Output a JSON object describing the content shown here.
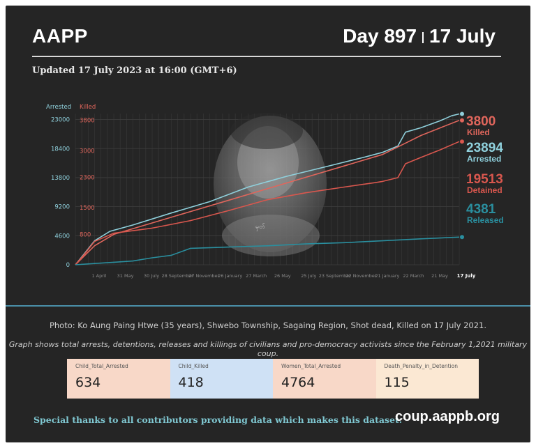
{
  "header": {
    "brand": "AAPP",
    "day_label": "Day 897",
    "date_label": "17 July",
    "updated": "Updated 17 July 2023 at 16:00 (GMT+6)"
  },
  "colors": {
    "background": "#252525",
    "arrested": "#8fd0dc",
    "killed": "#e0665c",
    "detained": "#d9574e",
    "released": "#2a8f9f",
    "divider": "#4a8fa8",
    "thanks": "#7fc7d1"
  },
  "chart_data": {
    "type": "line",
    "x_ticks": [
      "1 April",
      "31 May",
      "30 July",
      "28 September",
      "27 November",
      "26 January",
      "27 March",
      "26 May",
      "25 July",
      "23 September",
      "22 November",
      "21 January",
      "22 March",
      "21 May",
      "17 July"
    ],
    "x_range": [
      "1 February 2021",
      "17 July 2023"
    ],
    "left_axis": {
      "label": "Arrested",
      "ticks": [
        0,
        4600,
        9200,
        13800,
        18400,
        23000
      ],
      "range": [
        0,
        24500
      ]
    },
    "right_axis": {
      "label": "Killed",
      "ticks": [
        800,
        1500,
        2300,
        3000,
        3800
      ],
      "range": [
        0,
        4070
      ]
    },
    "grid": true,
    "series": [
      {
        "name": "Arrested",
        "axis": "left",
        "final_value": 23894,
        "x": [
          0,
          0.02,
          0.05,
          0.09,
          0.15,
          0.25,
          0.35,
          0.45,
          0.55,
          0.65,
          0.75,
          0.8,
          0.84,
          0.86,
          0.9,
          0.95,
          0.98,
          1.0
        ],
        "values": [
          0,
          1500,
          3800,
          5300,
          6300,
          8200,
          10000,
          12300,
          14000,
          15500,
          17000,
          17800,
          18800,
          21000,
          21700,
          22800,
          23600,
          23894
        ]
      },
      {
        "name": "Killed",
        "axis": "right",
        "final_value": 3800,
        "x": [
          0,
          0.03,
          0.05,
          0.1,
          0.2,
          0.3,
          0.4,
          0.5,
          0.6,
          0.7,
          0.8,
          0.85,
          0.9,
          0.95,
          1.0
        ],
        "values": [
          0,
          300,
          500,
          800,
          1100,
          1400,
          1700,
          2000,
          2300,
          2600,
          2900,
          3150,
          3400,
          3600,
          3800
        ]
      },
      {
        "name": "Detained",
        "axis": "left",
        "final_value": 19513,
        "x": [
          0,
          0.02,
          0.05,
          0.1,
          0.2,
          0.3,
          0.4,
          0.5,
          0.6,
          0.7,
          0.78,
          0.8,
          0.84,
          0.86,
          0.9,
          0.95,
          1.0
        ],
        "values": [
          0,
          1400,
          3700,
          5000,
          5800,
          7000,
          8600,
          10300,
          11400,
          12300,
          13000,
          13200,
          13800,
          16000,
          17000,
          18200,
          19513
        ]
      },
      {
        "name": "Released",
        "axis": "left",
        "final_value": 4381,
        "x": [
          0,
          0.05,
          0.1,
          0.15,
          0.2,
          0.25,
          0.3,
          0.4,
          0.5,
          0.6,
          0.7,
          0.8,
          0.9,
          1.0
        ],
        "values": [
          0,
          200,
          400,
          600,
          1100,
          1500,
          2600,
          2800,
          3000,
          3300,
          3500,
          3800,
          4100,
          4381
        ]
      }
    ],
    "end_labels": [
      {
        "value": "3800",
        "name": "Killed"
      },
      {
        "value": "23894",
        "name": "Arrested"
      },
      {
        "value": "19513",
        "name": "Detained"
      },
      {
        "value": "4381",
        "name": "Released"
      }
    ],
    "photo_watermark": "မှတ်"
  },
  "footer": {
    "photo_caption": "Photo: Ko Aung Paing Htwe (35 years), Shwebo Township, Sagaing Region, Shot dead, Killed on 17 July 2021.",
    "graph_note": "Graph shows total arrests, detentions, releases and killings of civilians and pro-democracy activists since the February 1,2021 military coup.",
    "stats": [
      {
        "label": "Child_Total_Arrested",
        "value": "634",
        "color": "#f8d8c8"
      },
      {
        "label": "Child_Killed",
        "value": "418",
        "color": "#cfe1f5"
      },
      {
        "label": "Women_Total_Arrested",
        "value": "4764",
        "color": "#f8d8c8"
      },
      {
        "label": "Death_Penalty_in_Detention",
        "value": "115",
        "color": "#fbe8d3"
      }
    ],
    "thanks": "Special thanks to all contributors providing data which makes this dataset.",
    "site": "coup.aappb.org"
  }
}
